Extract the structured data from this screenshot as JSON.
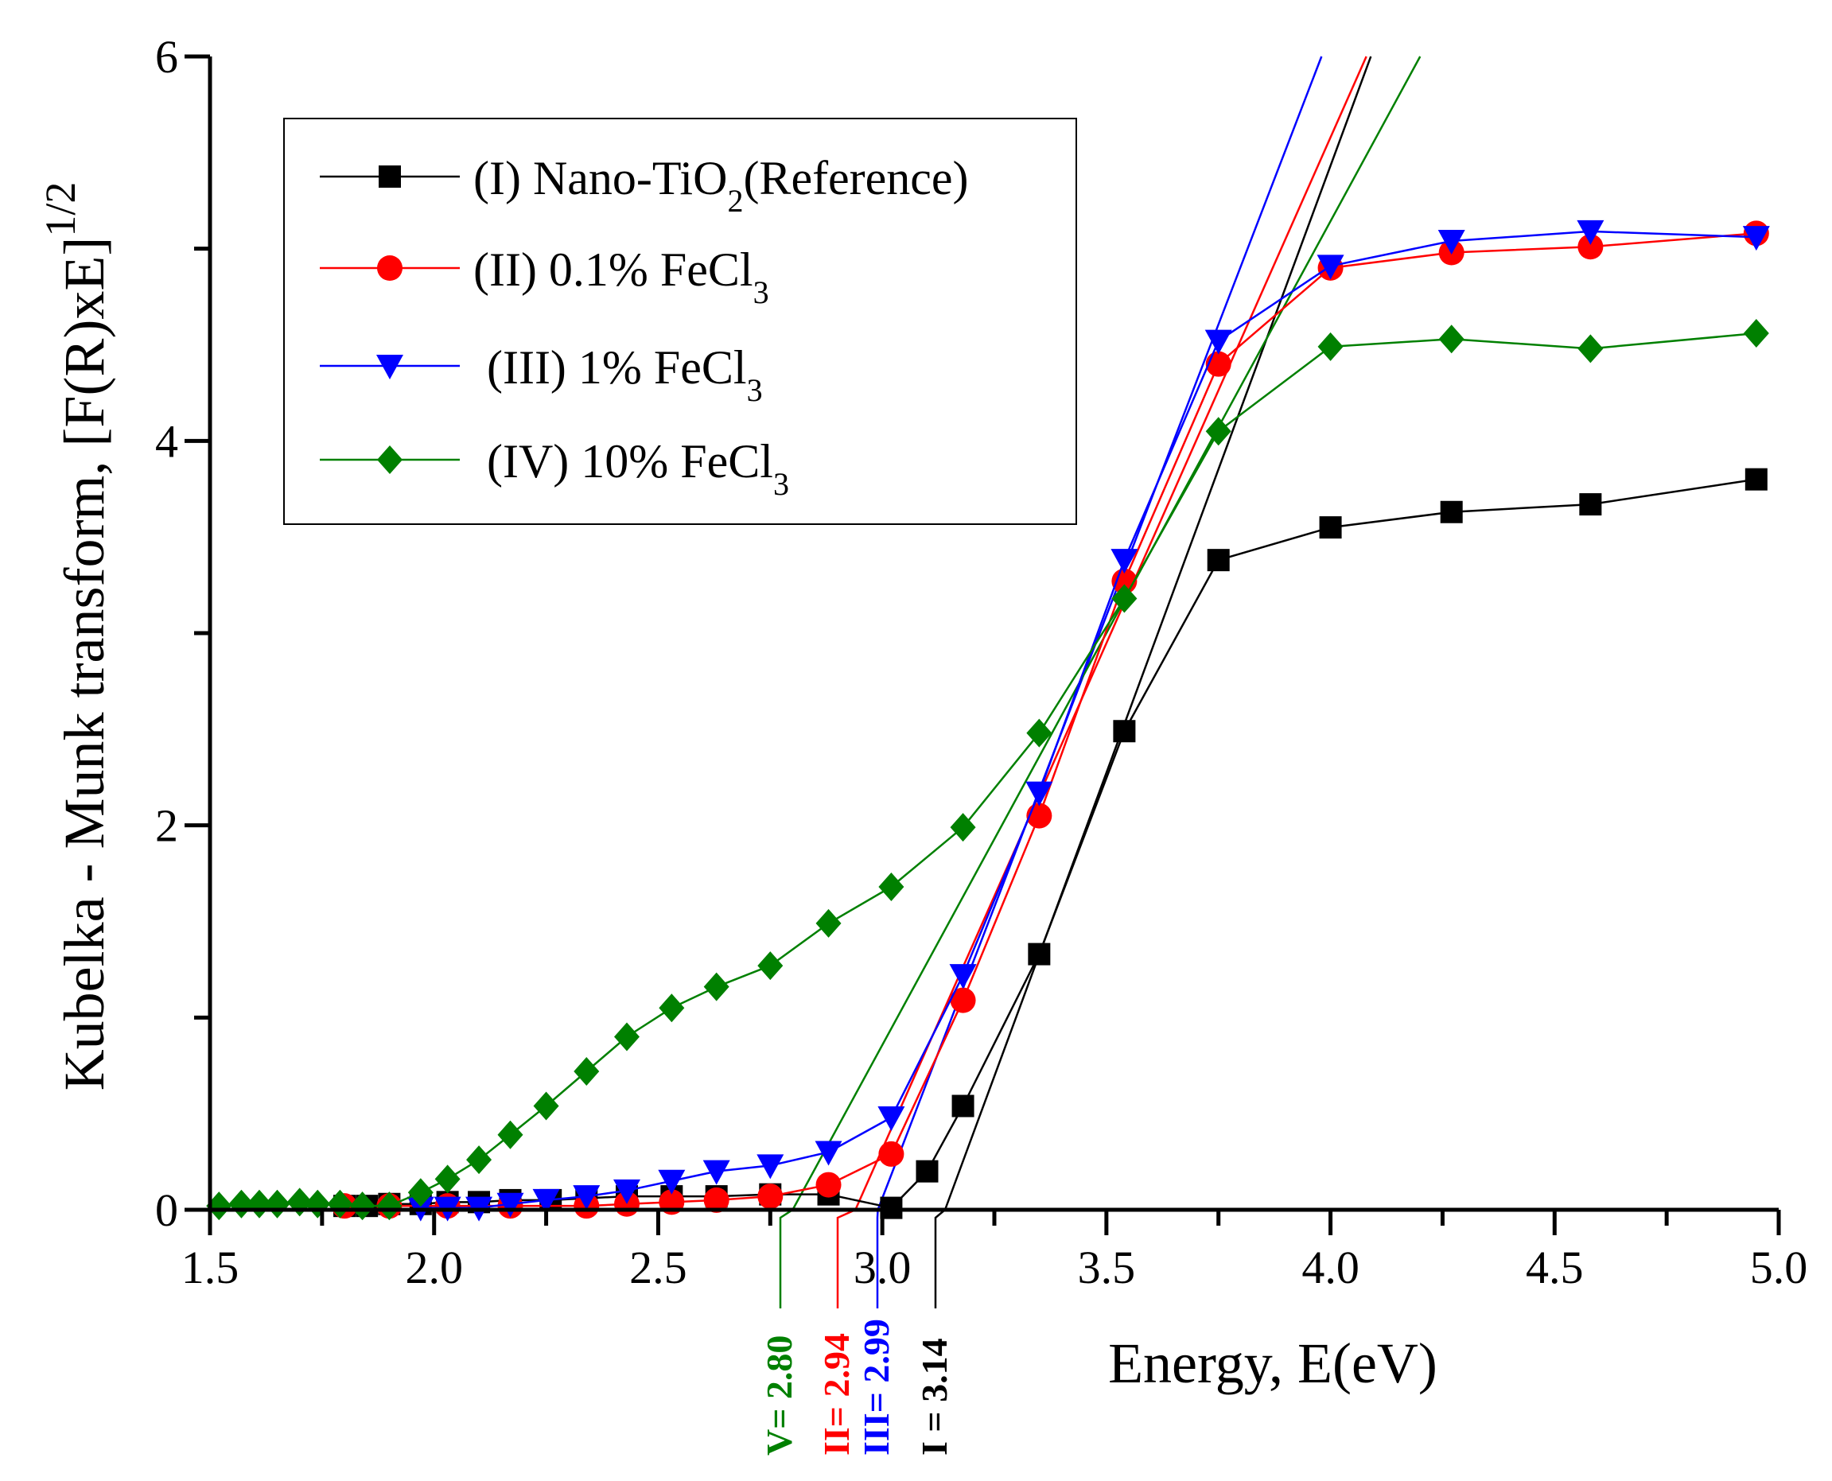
{
  "chart_data": {
    "type": "line",
    "title": "",
    "xlabel": "Energy, E(eV)",
    "ylabel": "Kubelka - Munk transform, [F(R)xE]",
    "ylabel_superscript": "1/2",
    "xlim": [
      1.5,
      5.0
    ],
    "ylim": [
      0,
      6
    ],
    "xticks": [
      "1.5",
      "2.0",
      "2.5",
      "3.0",
      "3.5",
      "4.0",
      "4.5",
      "5.0"
    ],
    "yticks": [
      "0",
      "2",
      "4",
      "6"
    ],
    "grid": false,
    "legend_position": "top-left",
    "series": [
      {
        "name": "(I) Nano-TiO",
        "sub": "2",
        "suffix": "(Reference)",
        "color": "#000000",
        "marker": "square",
        "x": [
          1.8,
          1.85,
          1.9,
          1.97,
          2.03,
          2.1,
          2.17,
          2.26,
          2.34,
          2.43,
          2.53,
          2.63,
          2.75,
          2.88,
          3.02,
          3.1,
          3.18,
          3.35,
          3.54,
          3.75,
          4.0,
          4.27,
          4.58,
          4.95
        ],
        "y": [
          0.02,
          0.02,
          0.03,
          0.03,
          0.04,
          0.04,
          0.05,
          0.05,
          0.06,
          0.07,
          0.07,
          0.07,
          0.08,
          0.08,
          0.01,
          0.2,
          0.54,
          1.33,
          2.49,
          3.38,
          3.55,
          3.63,
          3.67,
          3.8
        ]
      },
      {
        "name": "(II) 0.1% FeCl",
        "sub": "3",
        "suffix": "",
        "color": "#ff0000",
        "marker": "circle",
        "x": [
          1.8,
          1.9,
          2.03,
          2.17,
          2.34,
          2.43,
          2.53,
          2.63,
          2.75,
          2.88,
          3.02,
          3.18,
          3.35,
          3.54,
          3.75,
          4.0,
          4.27,
          4.58,
          4.95
        ],
        "y": [
          0.02,
          0.02,
          0.02,
          0.02,
          0.02,
          0.03,
          0.04,
          0.05,
          0.07,
          0.13,
          0.29,
          1.09,
          2.05,
          3.27,
          4.4,
          4.9,
          4.98,
          5.01,
          5.08
        ]
      },
      {
        "name": "(III) 1% FeCl",
        "sub": "3",
        "suffix": "",
        "color": "#0000ff",
        "marker": "triangle-down",
        "x": [
          1.97,
          2.03,
          2.1,
          2.17,
          2.25,
          2.34,
          2.43,
          2.53,
          2.63,
          2.75,
          2.88,
          3.02,
          3.18,
          3.35,
          3.54,
          3.75,
          4.0,
          4.27,
          4.58,
          4.95
        ],
        "y": [
          0.01,
          0.01,
          0.01,
          0.03,
          0.05,
          0.07,
          0.1,
          0.15,
          0.2,
          0.23,
          0.3,
          0.48,
          1.22,
          2.17,
          3.38,
          4.52,
          4.91,
          5.04,
          5.09,
          5.06
        ]
      },
      {
        "name": "(IV) 10% FeCl",
        "sub": "3",
        "suffix": "",
        "color": "#008000",
        "marker": "diamond",
        "x": [
          1.52,
          1.57,
          1.61,
          1.65,
          1.7,
          1.74,
          1.79,
          1.84,
          1.9,
          1.97,
          2.03,
          2.1,
          2.17,
          2.25,
          2.34,
          2.43,
          2.53,
          2.63,
          2.75,
          2.88,
          3.02,
          3.18,
          3.35,
          3.54,
          3.75,
          4.0,
          4.27,
          4.58,
          4.95
        ],
        "y": [
          0.02,
          0.03,
          0.03,
          0.03,
          0.04,
          0.03,
          0.03,
          0.02,
          0.02,
          0.09,
          0.16,
          0.26,
          0.39,
          0.54,
          0.72,
          0.9,
          1.05,
          1.16,
          1.27,
          1.49,
          1.68,
          1.99,
          2.48,
          3.18,
          4.05,
          4.49,
          4.53,
          4.48,
          4.56
        ]
      }
    ],
    "tangent_lines": [
      {
        "label": "I = 3.14",
        "intercept": 3.14,
        "x_at_top": 4.09,
        "color": "#000000"
      },
      {
        "label": "II= 2.94",
        "intercept": 2.94,
        "x_at_top": 4.08,
        "color": "#ff0000"
      },
      {
        "label": "III= 2.99",
        "intercept": 2.99,
        "x_at_top": 3.98,
        "color": "#0000ff"
      },
      {
        "label": "V= 2.80",
        "intercept": 2.8,
        "x_at_top": 4.2,
        "color": "#008000"
      }
    ]
  }
}
